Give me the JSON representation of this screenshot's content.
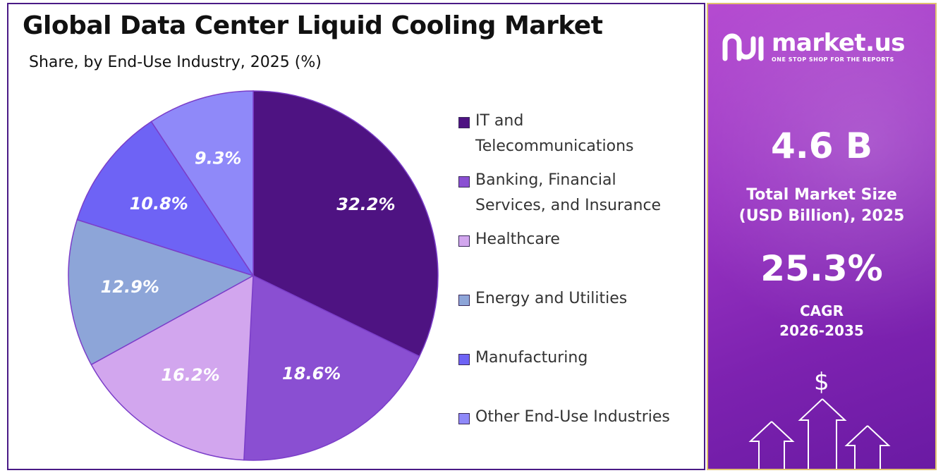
{
  "title": "Global Data Center Liquid Cooling Market",
  "subtitle": "Share, by End-Use Industry, 2025 (%)",
  "chart_data": {
    "type": "pie",
    "title": "Global Data Center Liquid Cooling Market",
    "subtitle": "Share, by End-Use Industry, 2025 (%)",
    "legend_position": "right",
    "slices": [
      {
        "label_line1": "IT and",
        "label_line2": "Telecommunications",
        "name": "IT and Telecommunications",
        "value": 32.2,
        "display": "32.2%",
        "color": "#4e1382"
      },
      {
        "label_line1": "Banking, Financial",
        "label_line2": "Services, and Insurance",
        "name": "Banking, Financial Services, and Insurance",
        "value": 18.6,
        "display": "18.6%",
        "color": "#8a4fd2"
      },
      {
        "label_line1": "Healthcare",
        "label_line2": "",
        "name": "Healthcare",
        "value": 16.2,
        "display": "16.2%",
        "color": "#d2a6ee"
      },
      {
        "label_line1": "Energy and Utilities",
        "label_line2": "",
        "name": "Energy and Utilities",
        "value": 12.9,
        "display": "12.9%",
        "color": "#8da5d8"
      },
      {
        "label_line1": "Manufacturing",
        "label_line2": "",
        "name": "Manufacturing",
        "value": 10.8,
        "display": "10.8%",
        "color": "#6e63f5"
      },
      {
        "label_line1": "Other End-Use Industries",
        "label_line2": "",
        "name": "Other End-Use Industries",
        "value": 9.3,
        "display": "9.3%",
        "color": "#8f89f9"
      }
    ]
  },
  "sidebar": {
    "brand_name": "market.us",
    "brand_tagline": "ONE STOP SHOP FOR THE REPORTS",
    "market_size_value": "4.6 B",
    "market_size_label_1": "Total Market Size",
    "market_size_label_2": "(USD Billion), 2025",
    "cagr_value": "25.3%",
    "cagr_label_1": "CAGR",
    "cagr_label_2": "2026-2035",
    "dollar_symbol": "$",
    "icon": "market-us-logo-icon"
  }
}
